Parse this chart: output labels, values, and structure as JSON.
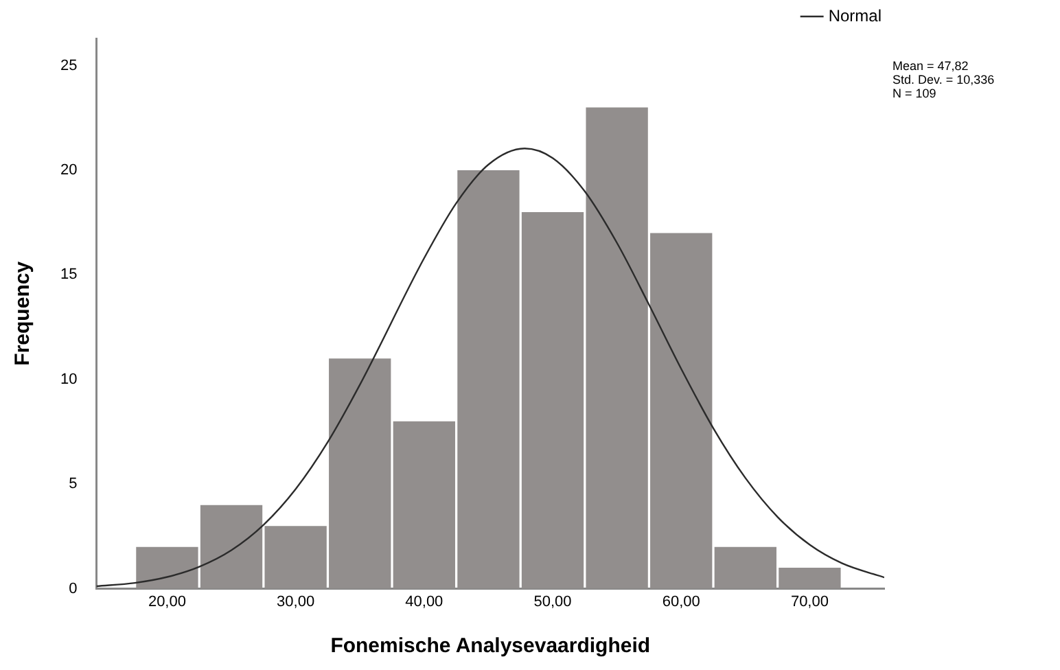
{
  "chart_data": {
    "type": "histogram",
    "xlabel": "Fonemische Analysevaardigheid",
    "ylabel": "Frequency",
    "bins": [
      17.5,
      22.5,
      27.5,
      32.5,
      37.5,
      42.5,
      47.5,
      52.5,
      57.5,
      62.5,
      67.5,
      72.5
    ],
    "series": [
      {
        "type": "histogram",
        "color": "#928e8d",
        "values": [
          2,
          4,
          3,
          11,
          8,
          20,
          18,
          23,
          17,
          2,
          1
        ]
      },
      {
        "type": "line",
        "name": "Normal",
        "color": "#2b2b2b",
        "x": [
          14.5,
          17.5,
          20,
          22.5,
          25,
          27.5,
          30,
          32.5,
          35,
          40,
          42.5,
          45,
          47.82,
          50,
          52.5,
          55,
          57.5,
          60,
          62.5,
          65,
          67.5,
          70,
          72.5,
          75.8
        ],
        "values": [
          0.12,
          0.28,
          0.56,
          1.05,
          1.84,
          3.05,
          4.76,
          7.01,
          9.75,
          15.8,
          18.43,
          20.27,
          21.04,
          20.58,
          18.99,
          16.53,
          13.57,
          10.51,
          7.67,
          5.29,
          3.43,
          2.1,
          1.22,
          0.54
        ]
      }
    ],
    "xlim": [
      14.5,
      75.8
    ],
    "xticks": [
      {
        "value": 20,
        "label": "20,00"
      },
      {
        "value": 30,
        "label": "30,00"
      },
      {
        "value": 40,
        "label": "40,00"
      },
      {
        "value": 50,
        "label": "50,00"
      },
      {
        "value": 60,
        "label": "60,00"
      },
      {
        "value": 70,
        "label": "70,00"
      }
    ],
    "ylim": [
      0,
      26.3
    ],
    "yticks": [
      0,
      5,
      10,
      15,
      20,
      25
    ],
    "grid": false,
    "legend": "top right",
    "marker": "none",
    "line_style": "solid",
    "annotations": [
      "Mean = 47,82",
      "Std. Dev. = 10,336",
      "N = 109"
    ]
  }
}
